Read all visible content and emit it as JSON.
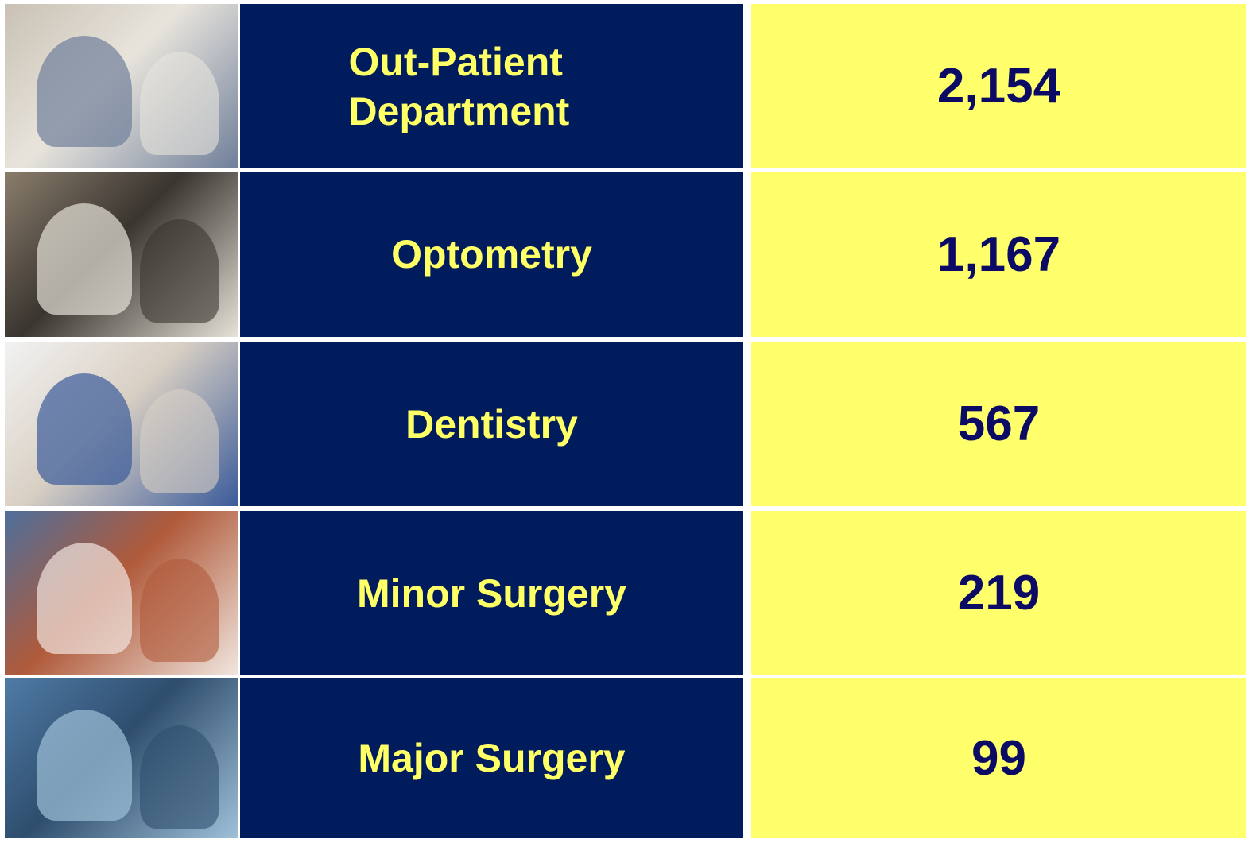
{
  "table": {
    "rows": [
      [
        "Out-Patient Department",
        "2,154"
      ],
      [
        "Optometry",
        "1,167"
      ],
      [
        "Dentistry",
        "567"
      ],
      [
        "Minor Surgery",
        "219"
      ],
      [
        "Major Surgery",
        "99"
      ]
    ]
  }
}
